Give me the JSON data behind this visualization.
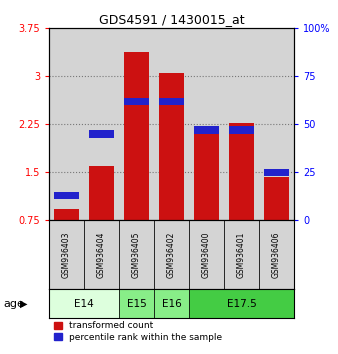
{
  "title": "GDS4591 / 1430015_at",
  "samples": [
    "GSM936403",
    "GSM936404",
    "GSM936405",
    "GSM936402",
    "GSM936400",
    "GSM936401",
    "GSM936406"
  ],
  "transformed_counts": [
    0.92,
    1.6,
    3.38,
    3.05,
    2.15,
    2.27,
    1.42
  ],
  "percentile_ranks": [
    0.13,
    0.45,
    0.62,
    0.62,
    0.47,
    0.47,
    0.25
  ],
  "ylim": [
    0.75,
    3.75
  ],
  "yticks": [
    0.75,
    1.5,
    2.25,
    3.0,
    3.75
  ],
  "ytick_labels": [
    "0.75",
    "1.5",
    "2.25",
    "3",
    "3.75"
  ],
  "right_ytick_labels": [
    "0",
    "25",
    "50",
    "75",
    "100%"
  ],
  "bar_color": "#cc1111",
  "percentile_color": "#2222cc",
  "bar_bottom": 0.75,
  "age_groups": [
    {
      "label": "E14",
      "start": 0,
      "end": 2,
      "color": "#ddffdd"
    },
    {
      "label": "E15",
      "start": 2,
      "end": 3,
      "color": "#88ee88"
    },
    {
      "label": "E16",
      "start": 3,
      "end": 4,
      "color": "#88ee88"
    },
    {
      "label": "E17.5",
      "start": 4,
      "end": 7,
      "color": "#44cc44"
    }
  ],
  "col_bg_color": "#d4d4d4",
  "grid_color": "#777777"
}
